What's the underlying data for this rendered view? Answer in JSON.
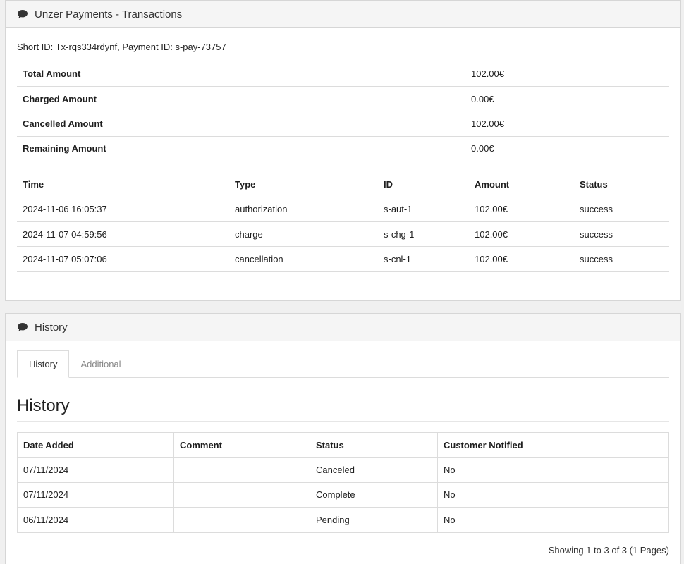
{
  "transactions_panel": {
    "title": "Unzer Payments - Transactions",
    "short_id_line": "Short ID: Tx-rqs334rdynf, Payment ID: s-pay-73757",
    "summary": [
      {
        "label": "Total Amount",
        "value": "102.00€"
      },
      {
        "label": "Charged Amount",
        "value": "0.00€"
      },
      {
        "label": "Cancelled Amount",
        "value": "102.00€"
      },
      {
        "label": "Remaining Amount",
        "value": "0.00€"
      }
    ],
    "columns": [
      "Time",
      "Type",
      "ID",
      "Amount",
      "Status"
    ],
    "rows": [
      {
        "time": "2024-11-06 16:05:37",
        "type": "authorization",
        "id": "s-aut-1",
        "amount": "102.00€",
        "status": "success"
      },
      {
        "time": "2024-11-07 04:59:56",
        "type": "charge",
        "id": "s-chg-1",
        "amount": "102.00€",
        "status": "success"
      },
      {
        "time": "2024-11-07 05:07:06",
        "type": "cancellation",
        "id": "s-cnl-1",
        "amount": "102.00€",
        "status": "success"
      }
    ]
  },
  "history_panel": {
    "title": "History",
    "tabs": [
      "History",
      "Additional"
    ],
    "section_title": "History",
    "columns": [
      "Date Added",
      "Comment",
      "Status",
      "Customer Notified"
    ],
    "rows": [
      {
        "date": "07/11/2024",
        "comment": "",
        "status": "Canceled",
        "notified": "No"
      },
      {
        "date": "07/11/2024",
        "comment": "",
        "status": "Complete",
        "notified": "No"
      },
      {
        "date": "06/11/2024",
        "comment": "",
        "status": "Pending",
        "notified": "No"
      }
    ],
    "pagination_text": "Showing 1 to 3 of 3 (1 Pages)"
  },
  "icons": {
    "panel_icon": "comment-icon"
  }
}
